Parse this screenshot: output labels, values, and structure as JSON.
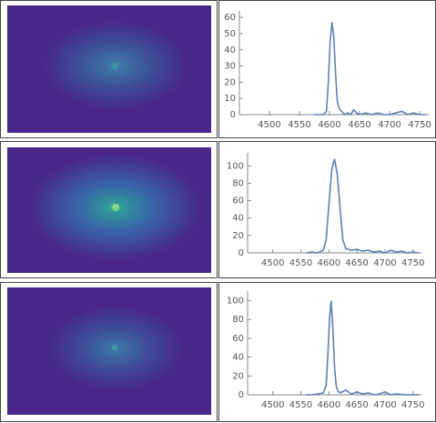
{
  "chart_data": [
    {
      "type": "line",
      "xlim": [
        4450,
        4765
      ],
      "ylim": [
        0,
        64
      ],
      "xticks": [
        4500,
        4550,
        4600,
        4650,
        4700,
        4750
      ],
      "yticks": [
        0,
        10,
        20,
        30,
        40,
        50,
        60
      ],
      "x": [
        4575,
        4585,
        4590,
        4595,
        4598,
        4601,
        4604,
        4607,
        4610,
        4613,
        4616,
        4620,
        4625,
        4630,
        4635,
        4640,
        4645,
        4650,
        4660,
        4670,
        4680,
        4690,
        4700,
        4710,
        4720,
        4730,
        4740,
        4750,
        4760
      ],
      "series": [
        {
          "color": "#5e81b5",
          "values": [
            0,
            0,
            0,
            2,
            20,
            45,
            57,
            48,
            25,
            8,
            4,
            2,
            0,
            1,
            0,
            3,
            1,
            0,
            1,
            0,
            1,
            0,
            0,
            1,
            2,
            0,
            1,
            0,
            0
          ]
        }
      ]
    },
    {
      "type": "line",
      "xlim": [
        4455,
        4765
      ],
      "ylim": [
        0,
        115
      ],
      "xticks": [
        4500,
        4550,
        4600,
        4650,
        4700,
        4750
      ],
      "yticks": [
        0,
        20,
        40,
        60,
        80,
        100
      ],
      "x": [
        4560,
        4570,
        4580,
        4590,
        4595,
        4600,
        4605,
        4610,
        4615,
        4620,
        4625,
        4630,
        4640,
        4650,
        4660,
        4670,
        4680,
        4690,
        4700,
        4710,
        4720,
        4730,
        4740,
        4750,
        4760
      ],
      "series": [
        {
          "color": "#5e81b5",
          "values": [
            0,
            1,
            0,
            3,
            15,
            55,
            95,
            108,
            90,
            50,
            15,
            5,
            3,
            4,
            2,
            3,
            1,
            2,
            0,
            3,
            1,
            2,
            0,
            1,
            0
          ]
        }
      ]
    },
    {
      "type": "line",
      "xlim": [
        4455,
        4765
      ],
      "ylim": [
        0,
        110
      ],
      "xticks": [
        4500,
        4550,
        4600,
        4650,
        4700,
        4750
      ],
      "yticks": [
        0,
        20,
        40,
        60,
        80,
        100
      ],
      "x": [
        4560,
        4570,
        4580,
        4590,
        4595,
        4598,
        4601,
        4604,
        4607,
        4610,
        4613,
        4616,
        4620,
        4630,
        4640,
        4650,
        4660,
        4670,
        4680,
        4690,
        4700,
        4710,
        4720,
        4740,
        4760
      ],
      "series": [
        {
          "color": "#5e81b5",
          "values": [
            0,
            0,
            1,
            2,
            10,
            40,
            80,
            100,
            70,
            30,
            10,
            4,
            2,
            5,
            1,
            3,
            1,
            2,
            0,
            1,
            3,
            0,
            1,
            0,
            0
          ]
        }
      ]
    }
  ]
}
